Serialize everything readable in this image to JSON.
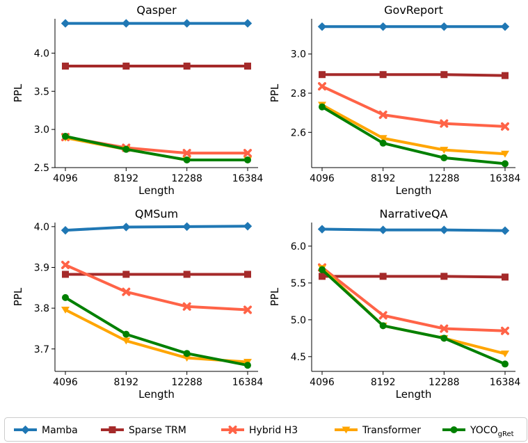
{
  "chart_data": [
    {
      "type": "line",
      "title": "Qasper",
      "xlabel": "Length",
      "ylabel": "PPL",
      "x": [
        4096,
        8192,
        12288,
        16384
      ],
      "xticks": [
        "4096",
        "8192",
        "12288",
        "16384"
      ],
      "yticks": [
        "2.5",
        "3.0",
        "3.5",
        "4.0"
      ],
      "ylim": [
        2.5,
        4.45
      ],
      "series": [
        {
          "key": "mamba",
          "values": [
            4.39,
            4.39,
            4.39,
            4.39
          ]
        },
        {
          "key": "sparse",
          "values": [
            3.83,
            3.83,
            3.83,
            3.83
          ]
        },
        {
          "key": "hybrid",
          "values": [
            2.9,
            2.76,
            2.69,
            2.69
          ]
        },
        {
          "key": "transformer",
          "values": [
            2.89,
            2.74,
            2.6,
            2.6
          ]
        },
        {
          "key": "yoco",
          "values": [
            2.91,
            2.74,
            2.6,
            2.6
          ]
        }
      ]
    },
    {
      "type": "line",
      "title": "GovReport",
      "xlabel": "Length",
      "ylabel": "PPL",
      "x": [
        4096,
        8192,
        12288,
        16384
      ],
      "xticks": [
        "4096",
        "8192",
        "12288",
        "16384"
      ],
      "yticks": [
        "2.6",
        "2.8",
        "3.0"
      ],
      "ylim": [
        2.42,
        3.18
      ],
      "series": [
        {
          "key": "mamba",
          "values": [
            3.14,
            3.14,
            3.14,
            3.14
          ]
        },
        {
          "key": "sparse",
          "values": [
            2.895,
            2.895,
            2.895,
            2.89
          ]
        },
        {
          "key": "hybrid",
          "values": [
            2.835,
            2.69,
            2.645,
            2.63
          ]
        },
        {
          "key": "transformer",
          "values": [
            2.74,
            2.57,
            2.51,
            2.49
          ]
        },
        {
          "key": "yoco",
          "values": [
            2.73,
            2.545,
            2.47,
            2.44
          ]
        }
      ]
    },
    {
      "type": "line",
      "title": "QMSum",
      "xlabel": "Length",
      "ylabel": "PPL",
      "x": [
        4096,
        8192,
        12288,
        16384
      ],
      "xticks": [
        "4096",
        "8192",
        "12288",
        "16384"
      ],
      "yticks": [
        "3.7",
        "3.8",
        "3.9",
        "4.0"
      ],
      "ylim": [
        3.645,
        4.01
      ],
      "series": [
        {
          "key": "mamba",
          "values": [
            3.991,
            3.999,
            4.0,
            4.001
          ]
        },
        {
          "key": "sparse",
          "values": [
            3.883,
            3.883,
            3.883,
            3.883
          ]
        },
        {
          "key": "hybrid",
          "values": [
            3.906,
            3.84,
            3.804,
            3.796
          ]
        },
        {
          "key": "transformer",
          "values": [
            3.796,
            3.72,
            3.678,
            3.668
          ]
        },
        {
          "key": "yoco",
          "values": [
            3.826,
            3.736,
            3.689,
            3.66
          ]
        }
      ]
    },
    {
      "type": "line",
      "title": "NarrativeQA",
      "xlabel": "Length",
      "ylabel": "PPL",
      "x": [
        4096,
        8192,
        12288,
        16384
      ],
      "xticks": [
        "4096",
        "8192",
        "12288",
        "16384"
      ],
      "yticks": [
        "4.5",
        "5.0",
        "5.5",
        "6.0"
      ],
      "ylim": [
        4.3,
        6.32
      ],
      "series": [
        {
          "key": "mamba",
          "values": [
            6.23,
            6.22,
            6.22,
            6.21
          ]
        },
        {
          "key": "sparse",
          "values": [
            5.59,
            5.59,
            5.59,
            5.58
          ]
        },
        {
          "key": "hybrid",
          "values": [
            5.71,
            5.06,
            4.88,
            4.85
          ]
        },
        {
          "key": "transformer",
          "values": [
            5.7,
            4.92,
            4.75,
            4.54
          ]
        },
        {
          "key": "yoco",
          "values": [
            5.68,
            4.92,
            4.75,
            4.4
          ]
        }
      ]
    }
  ],
  "legend": [
    {
      "key": "mamba",
      "label": "Mamba",
      "sub": "",
      "color": "#1f77b4",
      "marker": "diamond"
    },
    {
      "key": "sparse",
      "label": "Sparse TRM",
      "sub": "",
      "color": "#a52a2a",
      "marker": "square"
    },
    {
      "key": "hybrid",
      "label": "Hybrid H3",
      "sub": "",
      "color": "#ff6347",
      "marker": "x"
    },
    {
      "key": "transformer",
      "label": "Transformer",
      "sub": "",
      "color": "#ffa500",
      "marker": "triangle-down"
    },
    {
      "key": "yoco",
      "label": "YOCO",
      "sub": "gRet",
      "color": "#008000",
      "marker": "circle"
    }
  ]
}
